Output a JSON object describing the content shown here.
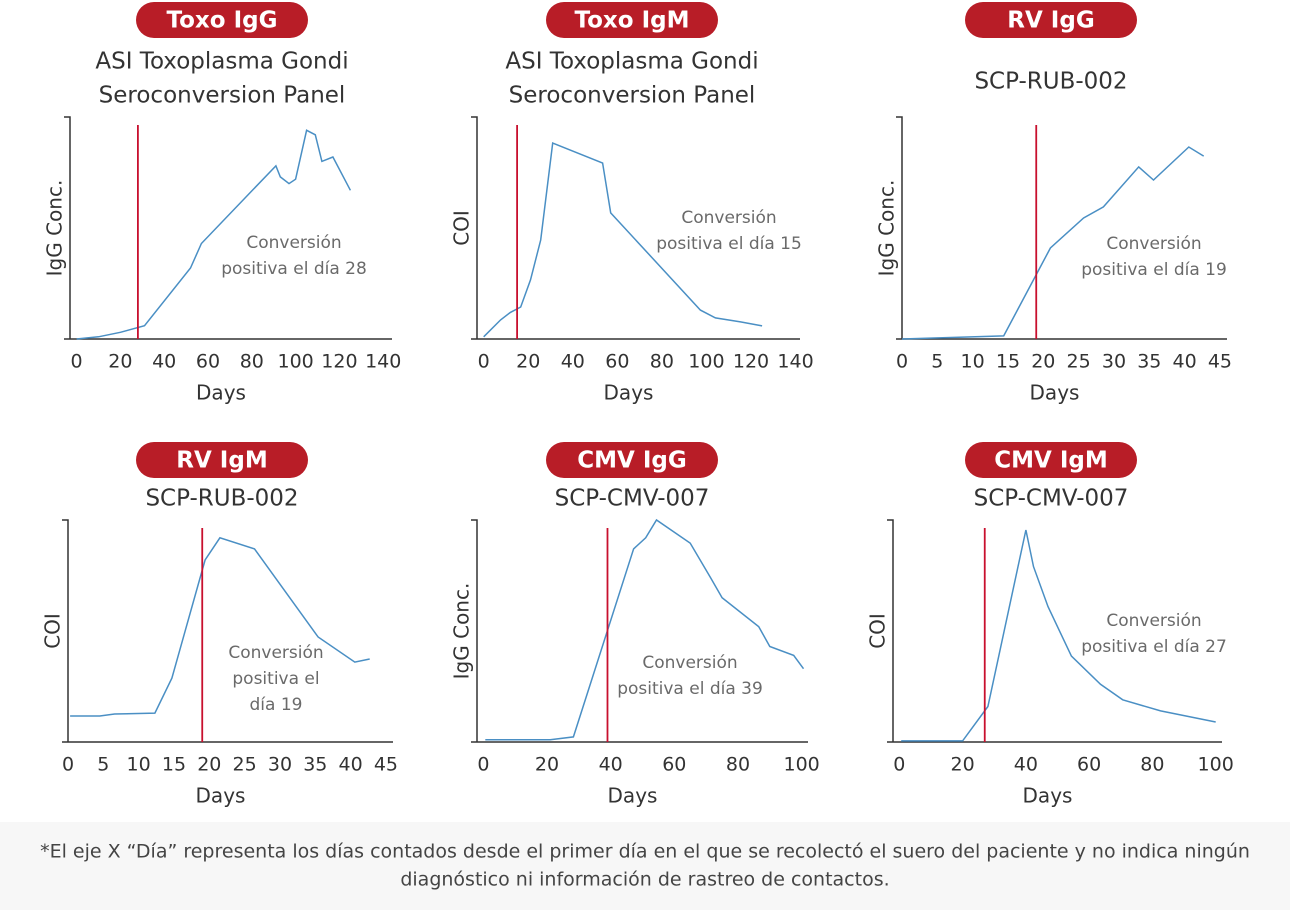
{
  "chart_data": [
    {
      "type": "line",
      "title": "Toxo IgG",
      "subtitle": [
        "ASI Toxoplasma Gondi",
        "Seroconversion Panel"
      ],
      "xlabel": "Days",
      "ylabel": "IgG Conc.",
      "annotation": [
        "Conversión",
        "positiva el día 28"
      ],
      "x": [
        0,
        10,
        20,
        31,
        52,
        57,
        91,
        93,
        97,
        100,
        105,
        109,
        112,
        117,
        125
      ],
      "values": [
        0,
        1,
        3,
        6,
        32,
        43,
        78,
        73,
        70,
        72,
        94,
        92,
        80,
        82,
        67
      ],
      "color": "#4a8fc4",
      "conversion_day": 28,
      "conversion_color": "#c8102e",
      "xlim": [
        -3,
        144
      ],
      "ylim": [
        0,
        100
      ],
      "xticks": [
        0,
        20,
        40,
        60,
        80,
        100,
        120,
        140
      ]
    },
    {
      "type": "line",
      "title": "Toxo IgM",
      "subtitle": [
        "ASI Toxoplasma Gondi",
        "Seroconversion Panel"
      ],
      "xlabel": "Days",
      "ylabel": "COI",
      "annotation": [
        "Conversión",
        "positiva el día 15"
      ],
      "x": [
        0,
        7.6,
        12,
        16.6,
        21,
        25.6,
        31,
        53.4,
        57,
        97.3,
        104,
        115.3,
        125
      ],
      "values": [
        1,
        8.6,
        12,
        14.4,
        26.6,
        44.6,
        88.3,
        79.3,
        56.8,
        13,
        9.5,
        7.7,
        5.9
      ],
      "color": "#4a8fc4",
      "conversion_day": 15,
      "conversion_color": "#c8102e",
      "xlim": [
        -3,
        142
      ],
      "ylim": [
        0,
        100
      ],
      "xticks": [
        0,
        20,
        40,
        60,
        80,
        100,
        120,
        140
      ]
    },
    {
      "type": "line",
      "title": "RV IgG",
      "subtitle": [
        "SCP-RUB-002"
      ],
      "xlabel": "Days",
      "ylabel": "IgG Conc.",
      "annotation": [
        "Conversión",
        "positiva el día 19"
      ],
      "x": [
        0,
        14.4,
        21,
        25.7,
        28.5,
        33.5,
        35.6,
        40.6,
        42.7
      ],
      "values": [
        0,
        1.4,
        41,
        54.5,
        59.5,
        77.5,
        71.6,
        86.5,
        82.4
      ],
      "color": "#4a8fc4",
      "conversion_day": 19,
      "conversion_color": "#c8102e",
      "xlim": [
        0,
        46
      ],
      "ylim": [
        0,
        100
      ],
      "xticks": [
        0,
        5,
        10,
        15,
        20,
        25,
        30,
        35,
        40,
        45
      ]
    },
    {
      "type": "line",
      "title": "RV IgM",
      "subtitle": [
        "SCP-RUB-002"
      ],
      "xlabel": "Days",
      "ylabel": "COI",
      "annotation": [
        "Conversión",
        "positiva el",
        "día 19"
      ],
      "x": [
        0.3,
        4.5,
        6.6,
        12.3,
        14.7,
        19.4,
        21.5,
        26.4,
        35.4,
        40.6,
        42.7
      ],
      "values": [
        11.7,
        11.7,
        12.6,
        13,
        28.8,
        82,
        92,
        87,
        47.3,
        36,
        37.4
      ],
      "color": "#4a8fc4",
      "conversion_day": 19,
      "conversion_color": "#c8102e",
      "xlim": [
        0,
        46
      ],
      "ylim": [
        0,
        100
      ],
      "xticks": [
        0,
        5,
        10,
        15,
        20,
        25,
        30,
        35,
        40,
        45
      ]
    },
    {
      "type": "line",
      "title": "CMV IgG",
      "subtitle": [
        "SCP-CMV-007"
      ],
      "xlabel": "Days",
      "ylabel": "IgG Conc.",
      "annotation": [
        "Conversión",
        "positiva el día 39"
      ],
      "x": [
        0.6,
        21,
        28.3,
        47.2,
        51,
        54.4,
        65,
        71.4,
        75,
        86.5,
        90,
        97.5,
        100.6
      ],
      "values": [
        1,
        1,
        2.3,
        87,
        92,
        100,
        89.6,
        74,
        65,
        52,
        43,
        39,
        33
      ],
      "color": "#4a8fc4",
      "conversion_day": 39,
      "conversion_color": "#c8102e",
      "xlim": [
        -2,
        102
      ],
      "ylim": [
        0,
        100
      ],
      "xticks": [
        0,
        20,
        40,
        60,
        80,
        100
      ]
    },
    {
      "type": "line",
      "title": "CMV IgM",
      "subtitle": [
        "SCP-CMV-007"
      ],
      "xlabel": "Days",
      "ylabel": "COI",
      "annotation": [
        "Conversión",
        "positiva el día 27"
      ],
      "x": [
        0.6,
        20,
        28,
        40,
        42.4,
        47,
        54.4,
        63.6,
        70.6,
        82.6,
        100
      ],
      "values": [
        0.5,
        0.5,
        16,
        95.5,
        79,
        61,
        38.7,
        26,
        19,
        14,
        9
      ],
      "color": "#4a8fc4",
      "conversion_day": 27,
      "conversion_color": "#c8102e",
      "xlim": [
        -2,
        102
      ],
      "ylim": [
        0,
        100
      ],
      "xticks": [
        0,
        20,
        40,
        60,
        80,
        100
      ]
    }
  ],
  "footnote": [
    "*El eje X “Día” representa los días contados desde el primer día en el que se recolectó el suero del paciente y no indica ningún",
    "diagnóstico ni información de rastreo de contactos."
  ]
}
